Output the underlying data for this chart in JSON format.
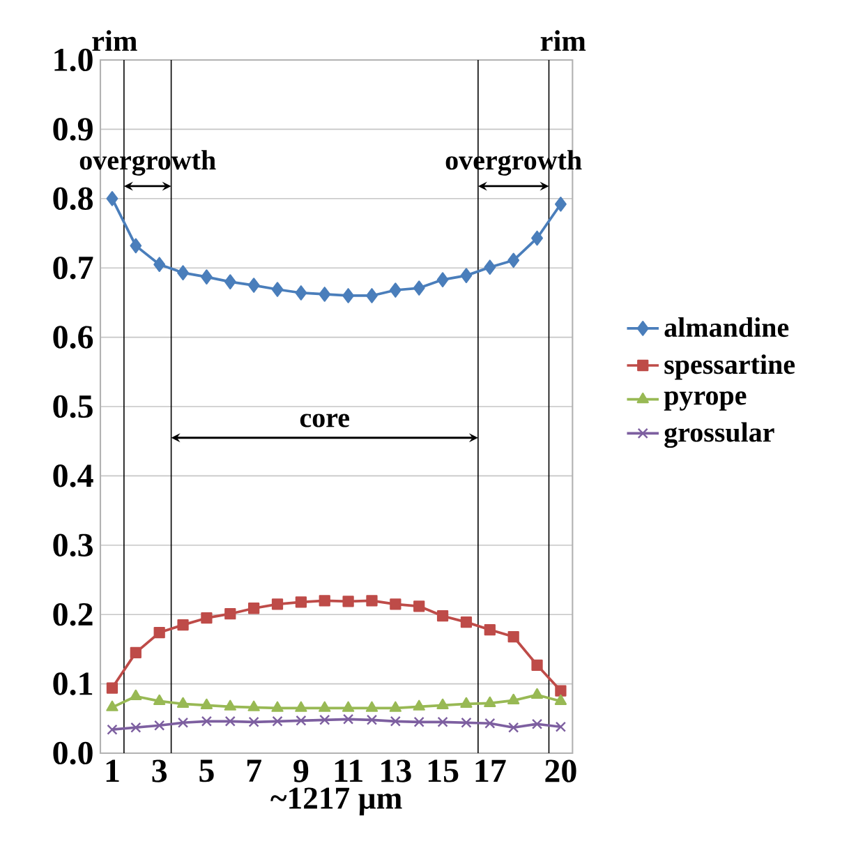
{
  "chart_data": {
    "type": "line",
    "xlabel": "~1217 µm",
    "x": [
      1,
      2,
      3,
      4,
      5,
      6,
      7,
      8,
      9,
      10,
      11,
      12,
      13,
      14,
      15,
      16,
      17,
      18,
      19,
      20
    ],
    "xlim": [
      0.5,
      20.5
    ],
    "xticks": [
      1,
      3,
      5,
      7,
      9,
      11,
      13,
      15,
      17,
      20
    ],
    "ylim": [
      0,
      1
    ],
    "yticks": [
      {
        "value": 0,
        "label": "0.0"
      },
      {
        "value": 0.1,
        "label": "0.1"
      },
      {
        "value": 0.2,
        "label": "0.2"
      },
      {
        "value": 0.3,
        "label": "0.3"
      },
      {
        "value": 0.4,
        "label": "0.4"
      },
      {
        "value": 0.5,
        "label": "0.5"
      },
      {
        "value": 0.6,
        "label": "0.6"
      },
      {
        "value": 0.7,
        "label": "0.7"
      },
      {
        "value": 0.8,
        "label": "0.8"
      },
      {
        "value": 0.9,
        "label": "0.9"
      },
      {
        "value": 1,
        "label": "1.0"
      }
    ],
    "grid": "y",
    "legend": "right",
    "series": [
      {
        "name": "almandine",
        "color": "#4a7ebb",
        "marker": "diamond",
        "values": [
          0.8,
          0.732,
          0.705,
          0.693,
          0.687,
          0.68,
          0.675,
          0.669,
          0.664,
          0.662,
          0.66,
          0.66,
          0.668,
          0.671,
          0.683,
          0.689,
          0.701,
          0.711,
          0.743,
          0.792
        ]
      },
      {
        "name": "spessartine",
        "color": "#be4b48",
        "marker": "square",
        "values": [
          0.094,
          0.145,
          0.174,
          0.185,
          0.195,
          0.201,
          0.209,
          0.215,
          0.218,
          0.22,
          0.219,
          0.22,
          0.215,
          0.212,
          0.198,
          0.189,
          0.178,
          0.168,
          0.127,
          0.09
        ]
      },
      {
        "name": "pyrope",
        "color": "#98b954",
        "marker": "triangle",
        "values": [
          0.066,
          0.082,
          0.075,
          0.071,
          0.069,
          0.067,
          0.066,
          0.065,
          0.065,
          0.065,
          0.065,
          0.065,
          0.065,
          0.067,
          0.069,
          0.071,
          0.072,
          0.076,
          0.084,
          0.075
        ]
      },
      {
        "name": "grossular",
        "color": "#7d5fa0",
        "marker": "cross",
        "values": [
          0.034,
          0.037,
          0.04,
          0.044,
          0.046,
          0.046,
          0.045,
          0.046,
          0.047,
          0.048,
          0.049,
          0.048,
          0.046,
          0.045,
          0.045,
          0.044,
          0.043,
          0.037,
          0.042,
          0.038
        ]
      }
    ],
    "ref_lines": [
      {
        "axis": "x",
        "value": 1.5,
        "color": "#000000"
      },
      {
        "axis": "x",
        "value": 3.5,
        "color": "#000000"
      },
      {
        "axis": "x",
        "value": 16.5,
        "color": "#000000"
      },
      {
        "axis": "x",
        "value": 19.5,
        "color": "#000000"
      }
    ],
    "annotations": [
      "rim",
      "rim",
      "overgrowth",
      "core",
      "overgrowth"
    ]
  }
}
